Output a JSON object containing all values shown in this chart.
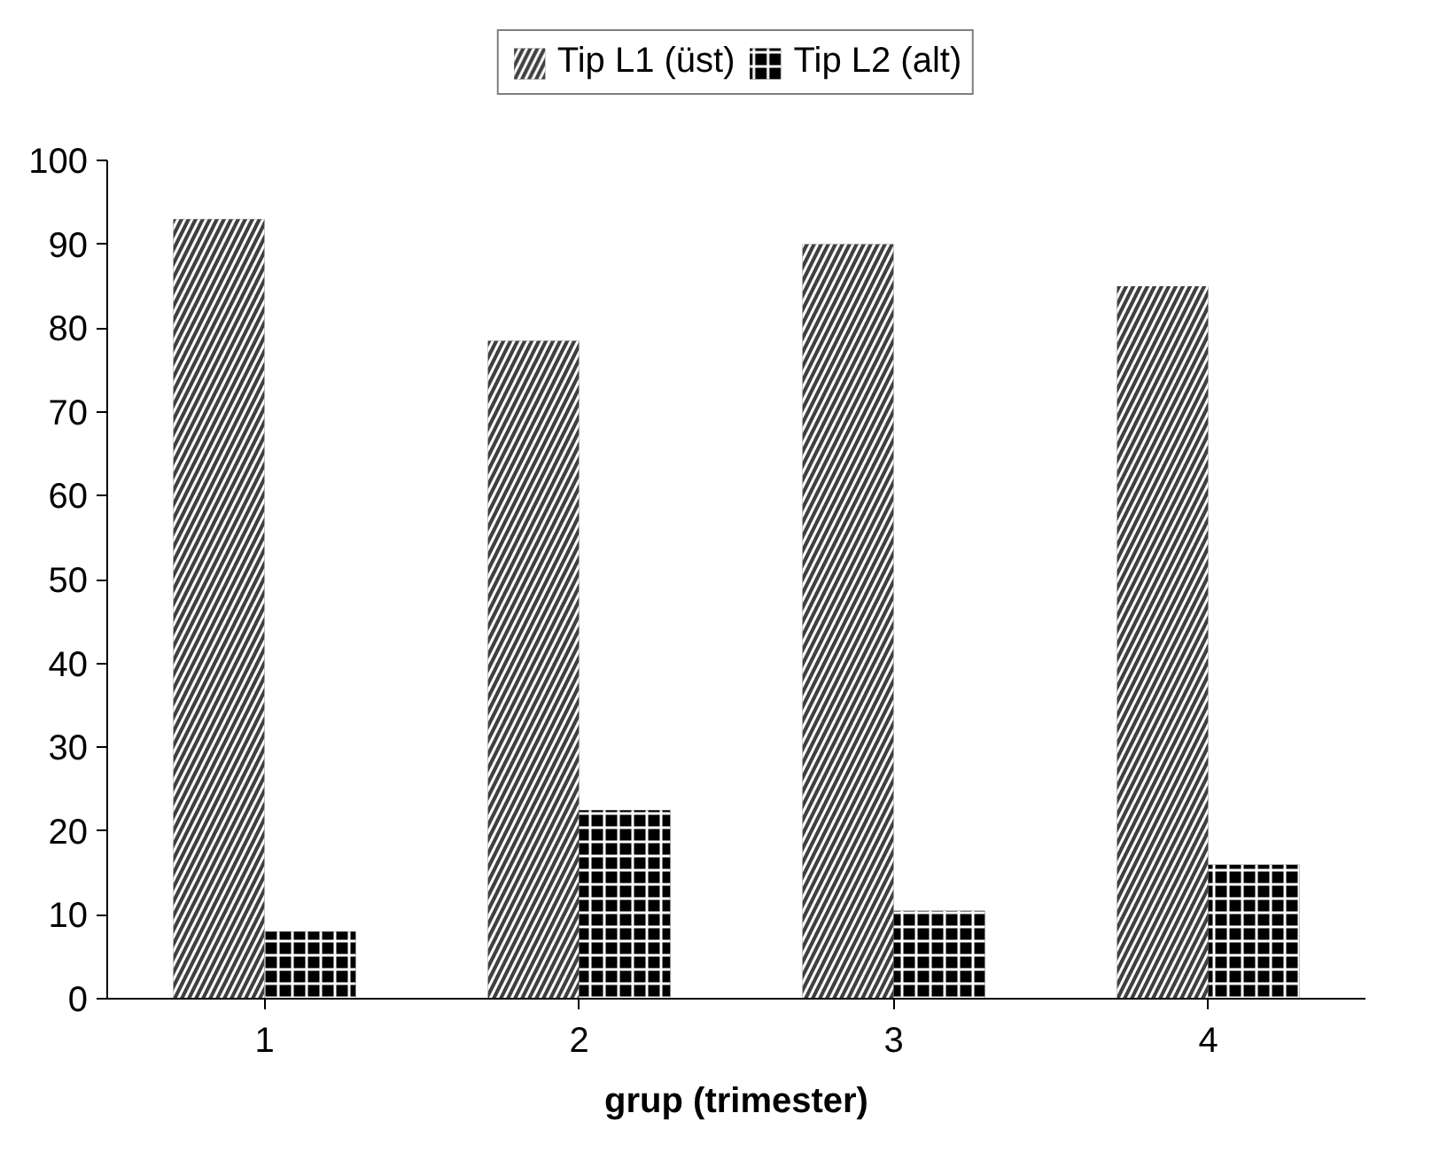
{
  "chart_data": {
    "type": "bar",
    "xlabel": "grup (trimester)",
    "categories": [
      "1",
      "2",
      "3",
      "4"
    ],
    "series": [
      {
        "name": "Tip L1 (üst)",
        "color": "#404040",
        "values": [
          93,
          78.5,
          90,
          85
        ]
      },
      {
        "name": "Tip L2 (alt)",
        "color": "#000000",
        "values": [
          8,
          22.5,
          10.5,
          16
        ]
      }
    ],
    "ylim": [
      0,
      100
    ],
    "yticks": [
      0,
      10,
      20,
      30,
      40,
      50,
      60,
      70,
      80,
      90,
      100
    ],
    "grid": false,
    "legend": "top"
  }
}
